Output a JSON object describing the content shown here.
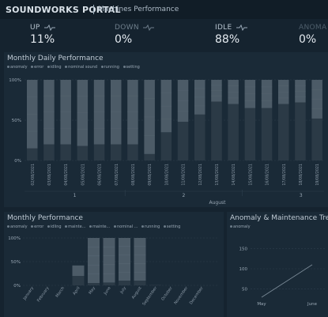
{
  "header": {
    "brand": "SOUNDWORKS PORTAL",
    "subtitle": "Machines Performance"
  },
  "kpis": [
    {
      "label": "UP",
      "value": "11%",
      "color": "#b7c4cf"
    },
    {
      "label": "DOWN",
      "value": "0%",
      "color": "#6e7e8b"
    },
    {
      "label": "IDLE",
      "value": "88%",
      "color": "#b7c4cf"
    },
    {
      "label": "ANOMA",
      "value": "0%",
      "color": "#4e5e6b"
    }
  ],
  "daily": {
    "title": "Monthly Daily Performance",
    "legend": [
      "anomaly",
      "error",
      "idling",
      "nominal sound",
      "running",
      "setting"
    ],
    "yticks": [
      "100%",
      "50%",
      "0%"
    ],
    "dates": [
      "02/08/2021",
      "03/08/2021",
      "04/08/2021",
      "05/08/2021",
      "06/08/2021",
      "07/08/2021",
      "08/08/2021",
      "09/08/2021",
      "10/08/2021",
      "11/08/2021",
      "12/08/2021",
      "13/08/2021",
      "14/08/2021",
      "15/08/2021",
      "16/08/2021",
      "17/08/2021",
      "18/08/2021",
      "19/08/2021",
      "20/08/2021",
      "21/08/2021",
      "22/08/2021",
      "23/08/2021"
    ],
    "weeks": [
      {
        "label": "1",
        "from": 0,
        "to": 5
      },
      {
        "label": "2",
        "from": 6,
        "to": 12
      },
      {
        "label": "3",
        "from": 13,
        "to": 19
      }
    ],
    "month": "August"
  },
  "monthly": {
    "title": "Monthly Performance",
    "legend": [
      "anomaly",
      "error",
      "idling",
      "mainte...",
      "mainte...",
      "nominal ...",
      "running",
      "setting"
    ],
    "yticks": [
      "100%",
      "50%",
      "0%"
    ],
    "months": [
      "January",
      "February",
      "March",
      "April",
      "May",
      "June",
      "July",
      "August",
      "September",
      "October",
      "November",
      "December"
    ]
  },
  "trend": {
    "title": "Anomaly & Maintenance Trend",
    "legend": [
      "anomaly"
    ],
    "yticks": [
      "150",
      "100",
      "50"
    ],
    "xlabels": [
      "May",
      "June"
    ]
  },
  "chart_data": [
    {
      "type": "bar",
      "title": "Monthly Daily Performance",
      "categories": [
        "02/08/2021",
        "03/08/2021",
        "04/08/2021",
        "05/08/2021",
        "06/08/2021",
        "07/08/2021",
        "08/08/2021",
        "09/08/2021",
        "10/08/2021",
        "11/08/2021",
        "12/08/2021",
        "13/08/2021",
        "14/08/2021",
        "15/08/2021",
        "16/08/2021",
        "17/08/2021",
        "18/08/2021",
        "19/08/2021",
        "20/08/2021",
        "21/08/2021",
        "22/08/2021",
        "23/08/2021"
      ],
      "ylim": [
        0,
        100
      ],
      "stacked": true,
      "series": [
        {
          "name": "running",
          "values": [
            15,
            20,
            20,
            18,
            20,
            20,
            20,
            8,
            35,
            48,
            57,
            73,
            70,
            65,
            65,
            70,
            72,
            52,
            30,
            28,
            36,
            31
          ]
        },
        {
          "name": "idling",
          "values": [
            85,
            80,
            80,
            82,
            80,
            80,
            80,
            92,
            65,
            52,
            43,
            27,
            30,
            35,
            35,
            30,
            28,
            48,
            70,
            72,
            64,
            69
          ]
        }
      ]
    },
    {
      "type": "bar",
      "title": "Monthly Performance",
      "categories": [
        "January",
        "February",
        "March",
        "April",
        "May",
        "June",
        "July",
        "August",
        "September",
        "October",
        "November",
        "December"
      ],
      "ylim": [
        0,
        100
      ],
      "stacked": true,
      "series": [
        {
          "name": "running",
          "values": [
            0,
            0,
            0,
            20,
            5,
            6,
            10,
            10,
            1,
            0,
            0,
            0
          ]
        },
        {
          "name": "idling",
          "values": [
            0,
            0,
            0,
            22,
            95,
            94,
            90,
            90,
            0,
            0,
            0,
            0
          ]
        }
      ]
    },
    {
      "type": "line",
      "title": "Anomaly & Maintenance Trend",
      "x": [
        "May",
        "June"
      ],
      "ylim": [
        30,
        170
      ],
      "series": [
        {
          "name": "anomaly",
          "values": [
            30,
            110
          ]
        }
      ]
    }
  ],
  "colors": {
    "bg": "#15232f",
    "panel": "#1a2a37",
    "running": "#2b3a46",
    "idling": "#4c5b67",
    "grid": "#2e3f4d"
  }
}
